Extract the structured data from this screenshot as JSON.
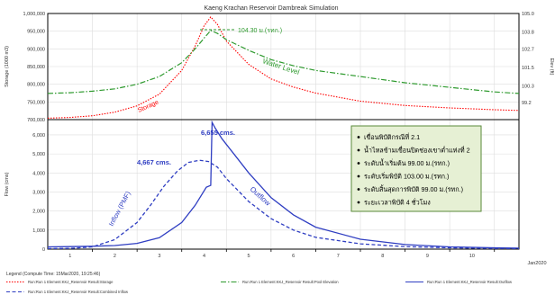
{
  "chart_data": [
    {
      "type": "line",
      "title": "Kaeng Krachan Reservoir Dambreak Simulation",
      "ylabel": "Storage (1000 m3)",
      "y2label": "Elev (ft)",
      "ylim": [
        700000,
        1000000
      ],
      "y2lim": [
        98.1,
        105.0
      ],
      "yticks": [
        "700,000",
        "750,000",
        "800,000",
        "850,000",
        "900,000",
        "950,000",
        "1,000,000"
      ],
      "y2ticks": [
        "99.2",
        "100.3",
        "101.5",
        "102.7",
        "103.8",
        "105.0"
      ],
      "grid": true,
      "series": [
        {
          "name": "Storage",
          "axis": "left",
          "color": "#ff0000",
          "x": [
            0.0,
            0.5,
            1.0,
            1.5,
            2.0,
            2.5,
            3.0,
            3.3,
            3.5,
            3.65,
            3.8,
            4.0,
            4.5,
            5.0,
            5.5,
            6.0,
            7.0,
            8.0,
            9.0,
            10.0,
            10.55
          ],
          "values": [
            704000,
            706000,
            711000,
            721000,
            739000,
            772000,
            839000,
            908000,
            965000,
            990000,
            969000,
            922000,
            856000,
            815000,
            792000,
            775000,
            752000,
            740000,
            733000,
            728000,
            726000
          ]
        },
        {
          "name": "Water Level",
          "axis": "right",
          "color": "#2e9a2e",
          "x": [
            0.0,
            0.5,
            1.0,
            1.5,
            2.0,
            2.5,
            3.0,
            3.3,
            3.5,
            3.65,
            3.8,
            4.0,
            4.5,
            5.0,
            5.5,
            6.0,
            7.0,
            8.0,
            9.0,
            10.0,
            10.55
          ],
          "values": [
            99.8,
            99.85,
            99.95,
            100.1,
            100.4,
            100.9,
            101.8,
            102.7,
            103.4,
            103.9,
            103.7,
            103.3,
            102.6,
            102.0,
            101.6,
            101.3,
            100.9,
            100.5,
            100.2,
            99.9,
            99.8
          ]
        }
      ],
      "annotations": [
        {
          "text": "Storage",
          "color": "#ff0000"
        },
        {
          "text": "Water Level",
          "color": "#2e9a2e"
        },
        {
          "text": "104.30 ม.(รทก.)",
          "color": "#2e9a2e"
        }
      ]
    },
    {
      "type": "line",
      "ylabel": "Flow (cms)",
      "ylim": [
        0,
        6800
      ],
      "xlim": [
        0,
        10.55
      ],
      "xticks": [
        "1",
        "2",
        "3",
        "4",
        "5",
        "6",
        "7",
        "8",
        "9",
        "10"
      ],
      "xlabel_right": "Jan2020",
      "yticks": [
        "0",
        "1,000",
        "2,000",
        "3,000",
        "4,000",
        "5,000",
        "6,000"
      ],
      "grid": true,
      "series": [
        {
          "name": "Inflow (PMF)",
          "color": "#2f3ec2",
          "dash": "dashed",
          "x": [
            0.0,
            0.5,
            1.0,
            1.5,
            2.0,
            2.3,
            2.6,
            2.9,
            3.15,
            3.4,
            3.6,
            3.8,
            4.0,
            4.5,
            5.0,
            5.5,
            6.0,
            7.0,
            8.0,
            9.0,
            10.0,
            10.55
          ],
          "values": [
            30,
            40,
            120,
            500,
            1400,
            2300,
            3300,
            4100,
            4550,
            4667,
            4600,
            4300,
            3700,
            2500,
            1600,
            1000,
            620,
            280,
            130,
            70,
            40,
            30
          ]
        },
        {
          "name": "Outflow",
          "color": "#2f3ec2",
          "dash": "solid",
          "x": [
            0.0,
            0.5,
            1.0,
            1.5,
            2.0,
            2.5,
            3.0,
            3.3,
            3.55,
            3.65,
            3.68,
            3.75,
            3.9,
            4.2,
            4.5,
            5.0,
            5.5,
            6.0,
            7.0,
            8.0,
            9.0,
            10.0,
            10.55
          ],
          "values": [
            120,
            130,
            150,
            190,
            300,
            600,
            1400,
            2300,
            3250,
            3350,
            6655,
            6350,
            5800,
            4900,
            4000,
            2700,
            1800,
            1150,
            520,
            240,
            120,
            70,
            50
          ]
        }
      ],
      "annotations": [
        {
          "text": "6,655 cms.",
          "color": "#2f3ec2"
        },
        {
          "text": "4,667 cms.",
          "color": "#2f3ec2"
        },
        {
          "text": "Inflow (PMF)",
          "color": "#2f3ec2"
        },
        {
          "text": "Outflow",
          "color": "#2f3ec2"
        }
      ]
    }
  ],
  "info_box": {
    "items": [
      "เขื่อนพิบัติกรณีที่ 2.1",
      "น้ำไหลข้ามเขื่อนปิดช่องเขาต่ำแห่งที่ 2",
      "ระดับน้ำเริ่มต้น 99.00 ม.(รทก.)",
      "ระดับเริ่มพิบัติ 103.00 ม.(รทก.)",
      "ระดับสิ้นสุดการพิบัติ 99.00 ม.(รทก.)",
      "ระยะเวลาพิบัติ 4 ชั่วโมง"
    ]
  },
  "legend": {
    "header": "Legend (Compute Time: 15Mar2020, 19:25:46)",
    "entries": [
      {
        "label": "Run:Run 1 Element:KKJ_Reservoir Result:Storage",
        "color": "#ff0000",
        "dash": "dotted"
      },
      {
        "label": "Run:Run 1 Element:KKJ_Reservoir Result:Pool Elevation",
        "color": "#2e9a2e",
        "dash": "dashdot"
      },
      {
        "label": "Run:Run 1 Element:KKJ_Reservoir Result:Outflow",
        "color": "#2f3ec2",
        "dash": "solid"
      },
      {
        "label": "Run:Run 1 Element:KKJ_Reservoir Result:Combined Inflow",
        "color": "#2f3ec2",
        "dash": "dashed"
      }
    ]
  },
  "colors": {
    "axis": "#000000",
    "grid": "#dddddd",
    "box_fill": "#e6f0d4",
    "box_border": "#5a8a3a"
  }
}
